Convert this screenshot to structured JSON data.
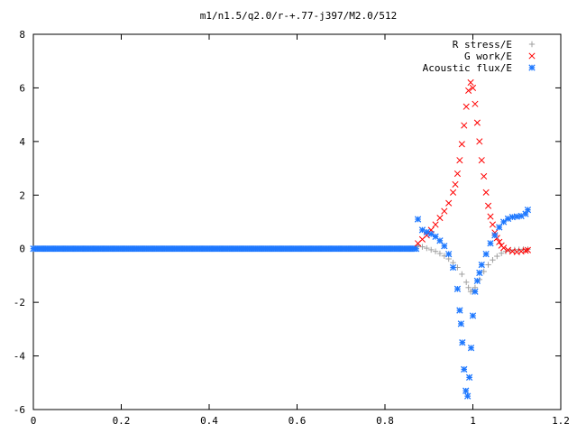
{
  "chart_data": {
    "type": "scatter",
    "title": "m1/n1.5/q2.0/r-+.77-j397/M2.0/512",
    "xlabel": "",
    "ylabel": "",
    "xlim": [
      0,
      1.2
    ],
    "ylim": [
      -6,
      8
    ],
    "x_ticks": [
      0,
      0.2,
      0.4,
      0.6,
      0.8,
      1,
      1.2
    ],
    "x_tick_labels": [
      "0",
      "0.2",
      "0.4",
      "0.6",
      "0.8",
      "1",
      "1.2"
    ],
    "y_ticks": [
      -6,
      -4,
      -2,
      0,
      2,
      4,
      6,
      8
    ],
    "y_tick_labels": [
      "-6",
      "-4",
      "-2",
      "0",
      "2",
      "4",
      "6",
      "8"
    ],
    "grid": false,
    "legend_position": "top-right",
    "series": [
      {
        "name": "R stress/E",
        "marker": "plus",
        "color": "#a0a0a0",
        "points": [
          [
            0.875,
            0.12
          ],
          [
            0.885,
            0.07
          ],
          [
            0.895,
            0.02
          ],
          [
            0.905,
            -0.04
          ],
          [
            0.915,
            -0.1
          ],
          [
            0.925,
            -0.18
          ],
          [
            0.935,
            -0.27
          ],
          [
            0.945,
            -0.38
          ],
          [
            0.955,
            -0.52
          ],
          [
            0.965,
            -0.7
          ],
          [
            0.975,
            -0.95
          ],
          [
            0.985,
            -1.25
          ],
          [
            0.99,
            -1.45
          ],
          [
            0.995,
            -1.6
          ],
          [
            1.0,
            -1.55
          ],
          [
            1.005,
            -1.45
          ],
          [
            1.015,
            -1.15
          ],
          [
            1.025,
            -0.85
          ],
          [
            1.035,
            -0.6
          ],
          [
            1.045,
            -0.42
          ],
          [
            1.055,
            -0.28
          ],
          [
            1.065,
            -0.17
          ],
          [
            1.075,
            -0.1
          ],
          [
            1.085,
            -0.06
          ],
          [
            1.095,
            -0.04
          ],
          [
            1.105,
            -0.03
          ],
          [
            1.115,
            -0.02
          ],
          [
            1.125,
            -0.02
          ]
        ]
      },
      {
        "name": "G work/E",
        "marker": "cross",
        "color": "#ff0000",
        "points": [
          [
            0.875,
            0.2
          ],
          [
            0.885,
            0.35
          ],
          [
            0.895,
            0.5
          ],
          [
            0.905,
            0.7
          ],
          [
            0.915,
            0.9
          ],
          [
            0.925,
            1.15
          ],
          [
            0.935,
            1.4
          ],
          [
            0.945,
            1.7
          ],
          [
            0.955,
            2.1
          ],
          [
            0.96,
            2.4
          ],
          [
            0.965,
            2.8
          ],
          [
            0.97,
            3.3
          ],
          [
            0.975,
            3.9
          ],
          [
            0.98,
            4.6
          ],
          [
            0.985,
            5.3
          ],
          [
            0.99,
            5.9
          ],
          [
            0.995,
            6.2
          ],
          [
            1.0,
            6.0
          ],
          [
            1.005,
            5.4
          ],
          [
            1.01,
            4.7
          ],
          [
            1.015,
            4.0
          ],
          [
            1.02,
            3.3
          ],
          [
            1.025,
            2.7
          ],
          [
            1.03,
            2.1
          ],
          [
            1.035,
            1.6
          ],
          [
            1.04,
            1.2
          ],
          [
            1.045,
            0.9
          ],
          [
            1.05,
            0.6
          ],
          [
            1.055,
            0.4
          ],
          [
            1.06,
            0.25
          ],
          [
            1.065,
            0.12
          ],
          [
            1.07,
            0.03
          ],
          [
            1.08,
            -0.05
          ],
          [
            1.09,
            -0.1
          ],
          [
            1.1,
            -0.12
          ],
          [
            1.11,
            -0.1
          ],
          [
            1.12,
            -0.07
          ],
          [
            1.125,
            -0.05
          ]
        ]
      },
      {
        "name": "Acoustic flux/E",
        "marker": "star",
        "color": "#1e78ff",
        "points": [
          [
            0.875,
            1.1
          ],
          [
            0.885,
            0.7
          ],
          [
            0.895,
            0.62
          ],
          [
            0.905,
            0.55
          ],
          [
            0.915,
            0.45
          ],
          [
            0.925,
            0.3
          ],
          [
            0.935,
            0.1
          ],
          [
            0.945,
            -0.2
          ],
          [
            0.955,
            -0.7
          ],
          [
            0.965,
            -1.5
          ],
          [
            0.97,
            -2.3
          ],
          [
            0.973,
            -2.8
          ],
          [
            0.976,
            -3.5
          ],
          [
            0.98,
            -4.5
          ],
          [
            0.984,
            -5.3
          ],
          [
            0.988,
            -5.5
          ],
          [
            0.992,
            -4.8
          ],
          [
            0.996,
            -3.7
          ],
          [
            1.0,
            -2.5
          ],
          [
            1.005,
            -1.6
          ],
          [
            1.01,
            -1.2
          ],
          [
            1.015,
            -0.9
          ],
          [
            1.02,
            -0.6
          ],
          [
            1.03,
            -0.2
          ],
          [
            1.04,
            0.2
          ],
          [
            1.05,
            0.5
          ],
          [
            1.06,
            0.8
          ],
          [
            1.07,
            1.0
          ],
          [
            1.08,
            1.12
          ],
          [
            1.09,
            1.18
          ],
          [
            1.1,
            1.2
          ],
          [
            1.11,
            1.22
          ],
          [
            1.12,
            1.3
          ],
          [
            1.125,
            1.45
          ]
        ]
      }
    ],
    "constant_segment": {
      "series": "Acoustic flux/E",
      "x_start": 0,
      "x_end": 0.875,
      "y": 0
    }
  }
}
